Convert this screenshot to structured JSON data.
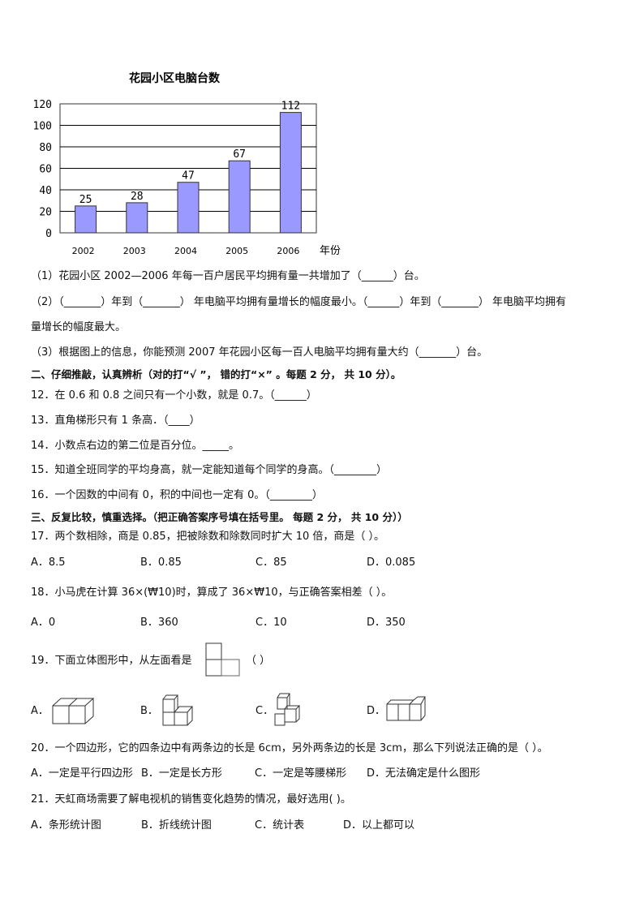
{
  "chart_data": {
    "type": "bar",
    "title": "花园小区电脑台数",
    "categories": [
      "2002",
      "2003",
      "2004",
      "2005",
      "2006"
    ],
    "values": [
      25,
      28,
      47,
      67,
      112
    ],
    "data_labels": [
      "25",
      "28",
      "47",
      "67",
      "112"
    ],
    "xlabel": "年份",
    "ylabel": "",
    "ylim": [
      0,
      120
    ],
    "yticks": [
      "0",
      "20",
      "40",
      "60",
      "80",
      "100",
      "120"
    ],
    "grid": true,
    "bar_color": "#9999ff"
  },
  "questions": {
    "q1": "（1）花园小区 2002—2006 年每一百户居民平均拥有量一共增加了（______）台。",
    "q2a": "（2）（_______）年到（_______）  年电脑平均拥有量增长的幅度最小。（______）年到（_______）  年电脑平均拥有",
    "q2b": "量增长的幅度最大。",
    "q3": "（3）根据图上的信息，你能预测 2007 年花园小区每一百人电脑平均拥有量大约（_______）台。",
    "section2": "二、仔细推敲，认真辨析（对的打“√ ”，  错的打“×”  。每题 2 分，  共 10 分）。",
    "q12": "12．在 0.6 和 0.8 之间只有一个小数，就是 0.7。（______）",
    "q13": "13．直角梯形只有 1 条高．（____）",
    "q14": "14．小数点右边的第二位是百分位。_____。",
    "q15": "15．知道全班同学的平均身高，就一定能知道每个同学的身高。（________）",
    "q16": "16．一个因数的中间有 0，积的中间也一定有 0。（________）",
    "section3": "三、反复比较，慎重选择。（把正确答案序号填在括号里。  每题 2 分，  共 10 分））",
    "q17": "17．两个数相除，商是 0.85，把被除数和除数同时扩大 10 倍，商是（      ）。",
    "q17_options": [
      "A．8.5",
      "B．0.85",
      "C．85",
      "D．0.085"
    ],
    "q18": "18．小马虎在计算 36×(₩10)时，算成了 36×₩10，与正确答案相差（      ）。",
    "q18_options": [
      "A．0",
      "B．360",
      "C．10",
      "D．350"
    ],
    "q19": "19．下面立体图形中，从左面看是",
    "q19_paren": "（     ）",
    "q19_options": [
      "A．",
      "B．",
      "C．",
      "D．"
    ],
    "q20": "20．一个四边形，它的四条边中有两条边的长是 6cm，另外两条边的长是 3cm，那么下列说法正确的是（      ）。",
    "q20_options": [
      "A．一定是平行四边形",
      "B．一定是长方形",
      "C．一定是等腰梯形",
      "D．无法确定是什么图形"
    ],
    "q21": "21．天虹商场需要了解电视机的销售变化趋势的情况，最好选用(  )。",
    "q21_options": [
      "A．条形统计图",
      "B．折线统计图",
      "C．统计表",
      "D．以上都可以"
    ]
  }
}
